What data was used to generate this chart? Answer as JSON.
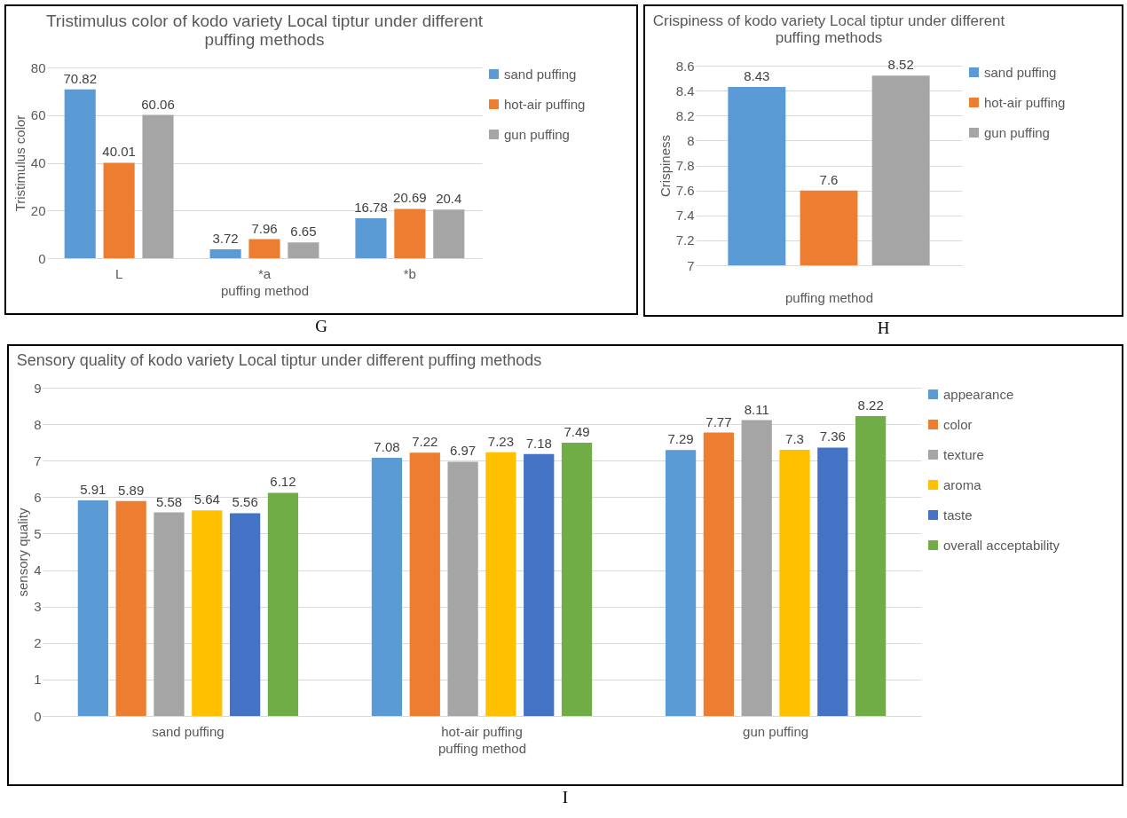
{
  "chart_data": [
    {
      "type": "bar",
      "title": "Tristimulus color of kodo variety Local tiptur under different puffing methods",
      "xlabel": "puffing method",
      "ylabel": "Tristimulus color",
      "categories": [
        "L",
        "*a",
        "*b"
      ],
      "series": [
        {
          "name": "sand puffing",
          "color": "#5b9bd5",
          "values": [
            70.82,
            3.72,
            16.78
          ]
        },
        {
          "name": "hot-air puffing",
          "color": "#ed7d31",
          "values": [
            40.01,
            7.96,
            20.69
          ]
        },
        {
          "name": "gun puffing",
          "color": "#a5a5a5",
          "values": [
            60.06,
            6.65,
            20.4
          ]
        }
      ],
      "ylim": [
        0,
        80
      ],
      "yticks": [
        0,
        20,
        40,
        60,
        80
      ],
      "grid": "y",
      "legend": "right",
      "data_labels": true,
      "annotations": [
        "G"
      ]
    },
    {
      "type": "bar",
      "title": "Crispiness of kodo variety Local tiptur under different puffing methods",
      "xlabel": "puffing method",
      "ylabel": "Crispiness",
      "categories": [
        null
      ],
      "series": [
        {
          "name": "sand puffing",
          "color": "#5b9bd5",
          "values": [
            8.43
          ]
        },
        {
          "name": "hot-air puffing",
          "color": "#ed7d31",
          "values": [
            7.6
          ]
        },
        {
          "name": "gun puffing",
          "color": "#a5a5a5",
          "values": [
            8.52
          ]
        }
      ],
      "ylim": [
        7,
        8.6
      ],
      "yticks": [
        7,
        7.2,
        7.4,
        7.6,
        7.8,
        8,
        8.2,
        8.4,
        8.6
      ],
      "grid": "y",
      "legend": "right",
      "data_labels": true,
      "annotations": [
        "H"
      ]
    },
    {
      "type": "bar",
      "title": "Sensory quality of kodo variety Local tiptur under different puffing methods",
      "xlabel": "puffing method",
      "ylabel": "sensory quality",
      "categories": [
        "sand puffing",
        "hot-air puffing",
        "gun puffing"
      ],
      "series": [
        {
          "name": "appearance",
          "color": "#5b9bd5",
          "values": [
            5.91,
            7.08,
            7.29
          ]
        },
        {
          "name": "color",
          "color": "#ed7d31",
          "values": [
            5.89,
            7.22,
            7.77
          ]
        },
        {
          "name": "texture",
          "color": "#a5a5a5",
          "values": [
            5.58,
            6.97,
            8.11
          ]
        },
        {
          "name": "aroma",
          "color": "#ffc000",
          "values": [
            5.64,
            7.23,
            7.3
          ]
        },
        {
          "name": "taste",
          "color": "#4472c4",
          "values": [
            5.56,
            7.18,
            7.36
          ]
        },
        {
          "name": "overall acceptability",
          "color": "#70ad47",
          "values": [
            6.12,
            7.49,
            8.22
          ]
        }
      ],
      "ylim": [
        0,
        9
      ],
      "yticks": [
        0,
        1,
        2,
        3,
        4,
        5,
        6,
        7,
        8,
        9
      ],
      "grid": "y",
      "legend": "right",
      "data_labels": true,
      "annotations": [
        "I"
      ]
    }
  ]
}
